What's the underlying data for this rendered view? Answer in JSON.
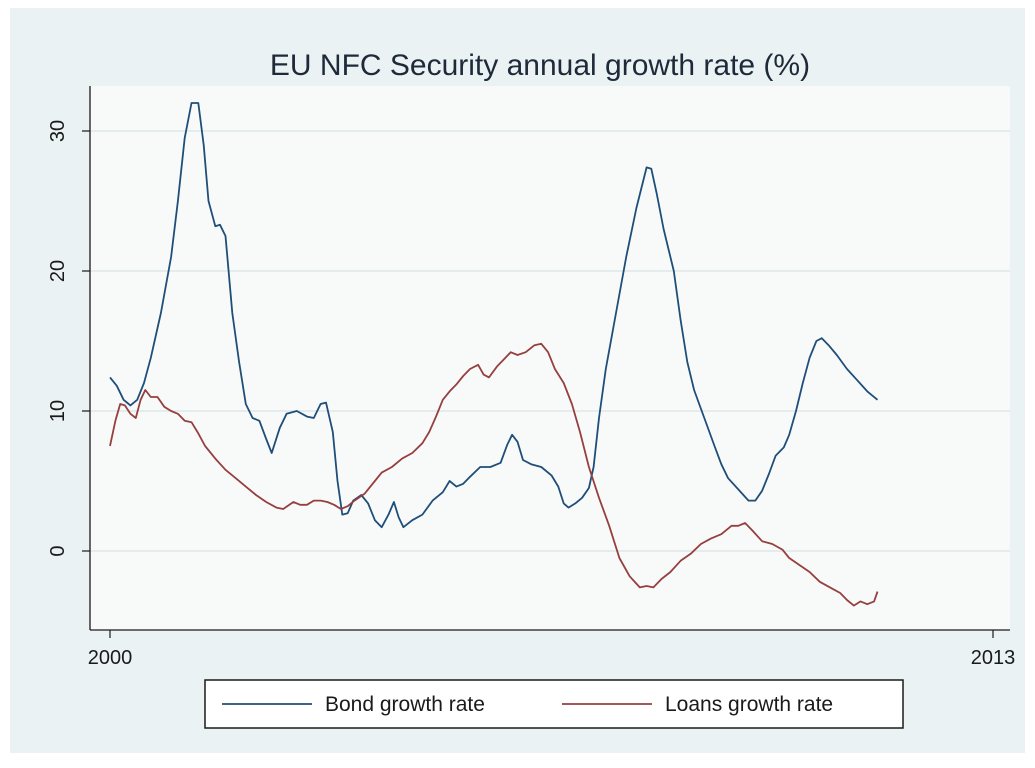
{
  "chart_data": {
    "type": "line",
    "title": "EU NFC Security annual growth rate (%)",
    "xlabel": "",
    "ylabel": "",
    "xlim": [
      2000.0,
      2013.0
    ],
    "ylim": [
      -5,
      33
    ],
    "x_ticks": [
      2000,
      2013
    ],
    "y_ticks": [
      0,
      10,
      20,
      30
    ],
    "grid": true,
    "legend_position": "bottom",
    "colors": {
      "background": "#eaf2f3",
      "plot_area": "#f8fafa",
      "bond": "#1f4e79",
      "loans": "#963f3f"
    },
    "series": [
      {
        "name": "Bond growth rate",
        "color": "#1f4e79",
        "points": [
          [
            2000.0,
            12.4
          ],
          [
            2000.1,
            11.8
          ],
          [
            2000.2,
            10.8
          ],
          [
            2000.3,
            10.4
          ],
          [
            2000.4,
            10.8
          ],
          [
            2000.5,
            12.0
          ],
          [
            2000.6,
            13.8
          ],
          [
            2000.75,
            17.0
          ],
          [
            2000.9,
            21.0
          ],
          [
            2001.0,
            25.0
          ],
          [
            2001.1,
            29.5
          ],
          [
            2001.2,
            32.0
          ],
          [
            2001.3,
            32.0
          ],
          [
            2001.38,
            29.0
          ],
          [
            2001.45,
            25.0
          ],
          [
            2001.55,
            23.2
          ],
          [
            2001.62,
            23.3
          ],
          [
            2001.7,
            22.5
          ],
          [
            2001.8,
            17.0
          ],
          [
            2001.9,
            13.5
          ],
          [
            2002.0,
            10.5
          ],
          [
            2002.1,
            9.5
          ],
          [
            2002.2,
            9.3
          ],
          [
            2002.3,
            8.0
          ],
          [
            2002.38,
            7.0
          ],
          [
            2002.5,
            8.8
          ],
          [
            2002.6,
            9.8
          ],
          [
            2002.75,
            10.0
          ],
          [
            2002.9,
            9.6
          ],
          [
            2003.0,
            9.5
          ],
          [
            2003.1,
            10.5
          ],
          [
            2003.18,
            10.6
          ],
          [
            2003.28,
            8.5
          ],
          [
            2003.35,
            5.0
          ],
          [
            2003.42,
            2.6
          ],
          [
            2003.5,
            2.7
          ],
          [
            2003.58,
            3.6
          ],
          [
            2003.7,
            4.0
          ],
          [
            2003.8,
            3.4
          ],
          [
            2003.9,
            2.2
          ],
          [
            2004.0,
            1.7
          ],
          [
            2004.1,
            2.6
          ],
          [
            2004.18,
            3.5
          ],
          [
            2004.25,
            2.4
          ],
          [
            2004.32,
            1.7
          ],
          [
            2004.45,
            2.2
          ],
          [
            2004.6,
            2.6
          ],
          [
            2004.75,
            3.6
          ],
          [
            2004.9,
            4.2
          ],
          [
            2005.0,
            5.0
          ],
          [
            2005.1,
            4.6
          ],
          [
            2005.2,
            4.8
          ],
          [
            2005.3,
            5.3
          ],
          [
            2005.45,
            6.0
          ],
          [
            2005.6,
            6.0
          ],
          [
            2005.75,
            6.3
          ],
          [
            2005.85,
            7.6
          ],
          [
            2005.92,
            8.3
          ],
          [
            2006.0,
            7.8
          ],
          [
            2006.08,
            6.5
          ],
          [
            2006.2,
            6.2
          ],
          [
            2006.35,
            6.0
          ],
          [
            2006.5,
            5.4
          ],
          [
            2006.6,
            4.6
          ],
          [
            2006.68,
            3.4
          ],
          [
            2006.75,
            3.1
          ],
          [
            2006.85,
            3.4
          ],
          [
            2006.95,
            3.8
          ],
          [
            2007.05,
            4.5
          ],
          [
            2007.12,
            6.0
          ],
          [
            2007.2,
            9.5
          ],
          [
            2007.3,
            13.0
          ],
          [
            2007.45,
            17.0
          ],
          [
            2007.6,
            21.0
          ],
          [
            2007.75,
            24.5
          ],
          [
            2007.9,
            27.4
          ],
          [
            2007.97,
            27.3
          ],
          [
            2008.05,
            25.5
          ],
          [
            2008.15,
            23.0
          ],
          [
            2008.3,
            20.0
          ],
          [
            2008.4,
            16.5
          ],
          [
            2008.5,
            13.5
          ],
          [
            2008.6,
            11.5
          ],
          [
            2008.75,
            9.5
          ],
          [
            2008.9,
            7.5
          ],
          [
            2009.0,
            6.2
          ],
          [
            2009.1,
            5.2
          ],
          [
            2009.25,
            4.4
          ],
          [
            2009.4,
            3.6
          ],
          [
            2009.5,
            3.6
          ],
          [
            2009.6,
            4.3
          ],
          [
            2009.7,
            5.5
          ],
          [
            2009.8,
            6.8
          ],
          [
            2009.92,
            7.4
          ],
          [
            2010.0,
            8.3
          ],
          [
            2010.1,
            10.0
          ],
          [
            2010.2,
            12.0
          ],
          [
            2010.3,
            13.8
          ],
          [
            2010.4,
            15.0
          ],
          [
            2010.48,
            15.2
          ],
          [
            2010.58,
            14.7
          ],
          [
            2010.7,
            14.0
          ],
          [
            2010.85,
            13.0
          ],
          [
            2011.0,
            12.2
          ],
          [
            2011.15,
            11.4
          ],
          [
            2011.3,
            10.8
          ]
        ]
      },
      {
        "name": "Loans growth rate",
        "color": "#963f3f",
        "points": [
          [
            2000.0,
            7.5
          ],
          [
            2000.08,
            9.3
          ],
          [
            2000.15,
            10.5
          ],
          [
            2000.22,
            10.4
          ],
          [
            2000.3,
            9.8
          ],
          [
            2000.38,
            9.5
          ],
          [
            2000.45,
            10.8
          ],
          [
            2000.52,
            11.5
          ],
          [
            2000.6,
            11.0
          ],
          [
            2000.7,
            11.0
          ],
          [
            2000.8,
            10.3
          ],
          [
            2000.9,
            10.0
          ],
          [
            2001.0,
            9.8
          ],
          [
            2001.1,
            9.3
          ],
          [
            2001.2,
            9.2
          ],
          [
            2001.3,
            8.4
          ],
          [
            2001.4,
            7.5
          ],
          [
            2001.55,
            6.6
          ],
          [
            2001.7,
            5.8
          ],
          [
            2001.85,
            5.2
          ],
          [
            2002.0,
            4.6
          ],
          [
            2002.15,
            4.0
          ],
          [
            2002.3,
            3.5
          ],
          [
            2002.45,
            3.1
          ],
          [
            2002.55,
            3.0
          ],
          [
            2002.7,
            3.5
          ],
          [
            2002.8,
            3.3
          ],
          [
            2002.9,
            3.3
          ],
          [
            2003.0,
            3.6
          ],
          [
            2003.1,
            3.6
          ],
          [
            2003.2,
            3.5
          ],
          [
            2003.3,
            3.3
          ],
          [
            2003.4,
            3.0
          ],
          [
            2003.5,
            3.2
          ],
          [
            2003.6,
            3.6
          ],
          [
            2003.75,
            4.1
          ],
          [
            2003.9,
            5.0
          ],
          [
            2004.0,
            5.6
          ],
          [
            2004.15,
            6.0
          ],
          [
            2004.3,
            6.6
          ],
          [
            2004.45,
            7.0
          ],
          [
            2004.6,
            7.7
          ],
          [
            2004.7,
            8.5
          ],
          [
            2004.8,
            9.6
          ],
          [
            2004.9,
            10.8
          ],
          [
            2005.0,
            11.4
          ],
          [
            2005.1,
            11.9
          ],
          [
            2005.2,
            12.5
          ],
          [
            2005.3,
            13.0
          ],
          [
            2005.42,
            13.3
          ],
          [
            2005.5,
            12.6
          ],
          [
            2005.58,
            12.4
          ],
          [
            2005.7,
            13.2
          ],
          [
            2005.8,
            13.7
          ],
          [
            2005.9,
            14.2
          ],
          [
            2006.0,
            14.0
          ],
          [
            2006.12,
            14.2
          ],
          [
            2006.25,
            14.7
          ],
          [
            2006.35,
            14.8
          ],
          [
            2006.45,
            14.2
          ],
          [
            2006.55,
            13.0
          ],
          [
            2006.68,
            12.0
          ],
          [
            2006.8,
            10.5
          ],
          [
            2006.92,
            8.5
          ],
          [
            2007.05,
            6.0
          ],
          [
            2007.2,
            3.8
          ],
          [
            2007.35,
            1.8
          ],
          [
            2007.5,
            -0.5
          ],
          [
            2007.65,
            -1.8
          ],
          [
            2007.8,
            -2.6
          ],
          [
            2007.9,
            -2.5
          ],
          [
            2008.0,
            -2.6
          ],
          [
            2008.12,
            -2.0
          ],
          [
            2008.25,
            -1.5
          ],
          [
            2008.4,
            -0.7
          ],
          [
            2008.55,
            -0.2
          ],
          [
            2008.7,
            0.5
          ],
          [
            2008.85,
            0.9
          ],
          [
            2009.0,
            1.2
          ],
          [
            2009.15,
            1.8
          ],
          [
            2009.25,
            1.8
          ],
          [
            2009.35,
            2.0
          ],
          [
            2009.45,
            1.5
          ],
          [
            2009.6,
            0.7
          ],
          [
            2009.75,
            0.5
          ],
          [
            2009.9,
            0.1
          ],
          [
            2010.0,
            -0.5
          ],
          [
            2010.15,
            -1.0
          ],
          [
            2010.3,
            -1.5
          ],
          [
            2010.45,
            -2.2
          ],
          [
            2010.6,
            -2.6
          ],
          [
            2010.75,
            -3.0
          ],
          [
            2010.85,
            -3.5
          ],
          [
            2010.95,
            -3.9
          ],
          [
            2011.05,
            -3.6
          ],
          [
            2011.15,
            -3.8
          ],
          [
            2011.25,
            -3.6
          ],
          [
            2011.3,
            -2.9
          ]
        ]
      }
    ]
  }
}
